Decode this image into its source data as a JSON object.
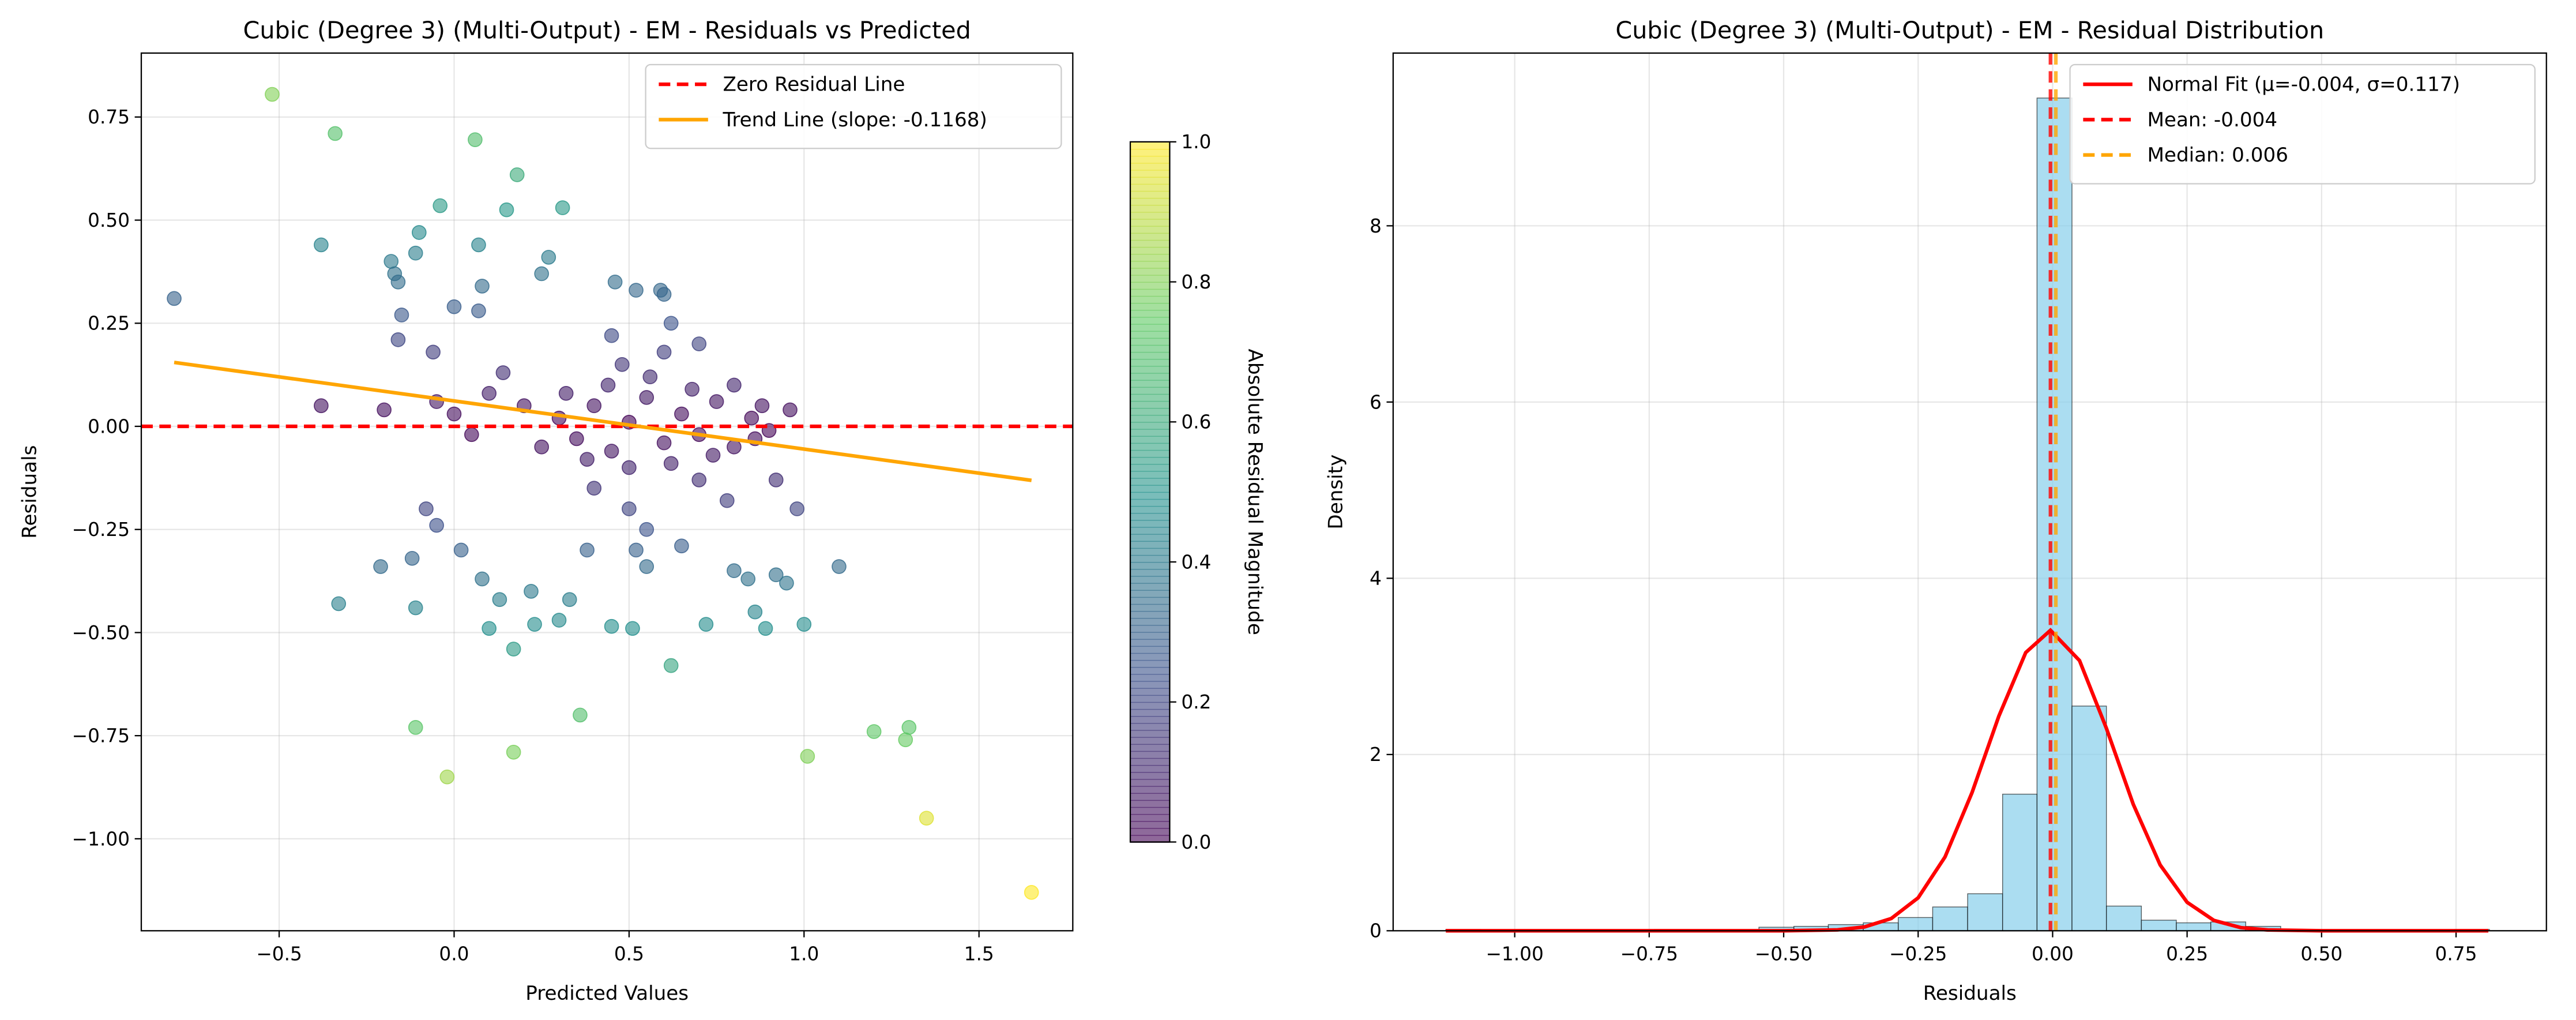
{
  "chart_data": [
    {
      "type": "scatter",
      "title": "Cubic (Degree 3) (Multi-Output) - EM - Residuals vs Predicted",
      "xlabel": "Predicted Values",
      "ylabel": "Residuals",
      "xlim": [
        -0.894,
        1.768
      ],
      "ylim": [
        -1.223,
        0.905
      ],
      "xticks": [
        {
          "value": -0.5,
          "label": "−0.5"
        },
        {
          "value": 0,
          "label": "0.0"
        },
        0.5,
        {
          "value": 1,
          "label": "1.0"
        },
        1.5
      ],
      "yticks": [
        {
          "value": -1,
          "label": "−1.00"
        },
        {
          "value": -0.75,
          "label": "−0.75"
        },
        {
          "value": -0.5,
          "label": "−0.50"
        },
        {
          "value": -0.25,
          "label": "−0.25"
        },
        {
          "value": 0,
          "label": "0.00"
        },
        0.25,
        {
          "value": 0.5,
          "label": "0.50"
        },
        0.75
      ],
      "grid": true,
      "legend": "upper right",
      "colormap": "viridis",
      "alpha": 0.6,
      "clim": [
        0,
        1
      ],
      "colorbar_label": "Absolute Residual Magnitude",
      "colorbar_ticks": [
        {
          "value": 0,
          "label": "0.0"
        },
        0.2,
        0.4,
        0.6,
        0.8,
        {
          "value": 1,
          "label": "1.0"
        }
      ],
      "points": {
        "x": [
          -0.8,
          -0.52,
          -0.34,
          -0.38,
          -0.33,
          -0.38,
          -0.2,
          -0.21,
          -0.18,
          -0.17,
          -0.16,
          -0.15,
          -0.16,
          -0.1,
          -0.11,
          -0.04,
          -0.06,
          -0.11,
          -0.11,
          -0.12,
          -0.08,
          -0.05,
          -0.02,
          0.0,
          0.02,
          0.06,
          0.07,
          0.08,
          0.08,
          0.07,
          0.1,
          0.13,
          0.14,
          0.15,
          0.18,
          0.17,
          0.17,
          0.22,
          0.23,
          0.25,
          0.27,
          0.3,
          0.31,
          0.33,
          0.36,
          0.38,
          0.45,
          0.46,
          0.51,
          0.52,
          0.55,
          0.59,
          0.6,
          0.62,
          0.65,
          0.72,
          0.8,
          0.84,
          0.86,
          0.89,
          0.92,
          0.95,
          0.98,
          1.0,
          1.01,
          1.1,
          1.2,
          1.29,
          1.3,
          1.35,
          1.65,
          0.96,
          0.92,
          0.88,
          0.3,
          0.35,
          0.4,
          0.45,
          0.5,
          0.55,
          0.6,
          0.65,
          0.7,
          0.75,
          0.8,
          0.85,
          0.9,
          0.32,
          0.38,
          0.44,
          0.5,
          0.56,
          0.62,
          0.68,
          0.74,
          0.8,
          0.86,
          0.4,
          0.5,
          0.6,
          0.7,
          0.2,
          0.25,
          0.1,
          0.05,
          0.0,
          -0.05,
          0.45,
          0.55,
          0.48,
          0.52,
          0.62,
          0.7,
          0.78
        ],
        "y": [
          0.31,
          0.805,
          0.71,
          0.44,
          -0.43,
          0.05,
          0.04,
          -0.34,
          0.4,
          0.37,
          0.35,
          0.27,
          0.21,
          0.47,
          0.42,
          0.535,
          0.18,
          -0.73,
          -0.44,
          -0.32,
          -0.2,
          -0.24,
          -0.85,
          0.29,
          -0.3,
          0.695,
          0.44,
          -0.37,
          0.34,
          0.28,
          -0.49,
          -0.42,
          0.13,
          0.525,
          0.61,
          -0.54,
          -0.79,
          -0.4,
          -0.48,
          0.37,
          0.41,
          -0.47,
          0.53,
          -0.42,
          -0.7,
          -0.3,
          -0.485,
          0.35,
          -0.49,
          0.33,
          -0.34,
          0.33,
          0.32,
          -0.58,
          -0.29,
          -0.48,
          -0.35,
          -0.37,
          -0.45,
          -0.49,
          -0.36,
          -0.38,
          -0.2,
          -0.48,
          -0.8,
          -0.34,
          -0.74,
          -0.76,
          -0.73,
          -0.95,
          -1.13,
          0.04,
          -0.13,
          0.05,
          0.02,
          -0.03,
          0.05,
          -0.06,
          0.01,
          0.07,
          -0.04,
          0.03,
          -0.02,
          0.06,
          -0.05,
          0.02,
          -0.01,
          0.08,
          -0.08,
          0.1,
          -0.1,
          0.12,
          -0.09,
          0.09,
          -0.07,
          0.1,
          -0.03,
          -0.15,
          -0.2,
          0.18,
          -0.13,
          0.05,
          -0.05,
          0.08,
          -0.02,
          0.03,
          0.06,
          0.22,
          -0.25,
          0.15,
          -0.3,
          0.25,
          0.2,
          -0.18
        ]
      },
      "lines": [
        {
          "name": "Zero Residual Line",
          "color": "#ff0000",
          "style": "dashed",
          "hline": 0
        },
        {
          "name": "Trend Line (slope: -0.1168)",
          "color": "#ffa500",
          "style": "solid",
          "x": [
            -0.8,
            1.65
          ],
          "y": [
            0.155,
            -0.131
          ]
        }
      ]
    },
    {
      "type": "histogram",
      "title": "Cubic (Degree 3) (Multi-Output) - EM - Residual Distribution",
      "xlabel": "Residuals",
      "ylabel": "Density",
      "xlim": [
        -1.226,
        0.918
      ],
      "ylim": [
        0,
        9.96
      ],
      "xticks": [
        {
          "value": -1,
          "label": "−1.00"
        },
        {
          "value": -0.75,
          "label": "−0.75"
        },
        {
          "value": -0.5,
          "label": "−0.50"
        },
        {
          "value": -0.25,
          "label": "−0.25"
        },
        {
          "value": 0,
          "label": "0.00"
        },
        0.25,
        {
          "value": 0.5,
          "label": "0.50"
        },
        0.75
      ],
      "yticks": [
        0,
        2,
        4,
        6,
        8
      ],
      "grid": true,
      "legend": "upper right",
      "color": "#87ceeb",
      "alpha": 0.7,
      "edgecolor": "#000000",
      "bins": [
        -1.128,
        -1.063,
        -0.999,
        -0.934,
        -0.869,
        -0.805,
        -0.74,
        -0.675,
        -0.611,
        -0.546,
        -0.481,
        -0.417,
        -0.352,
        -0.287,
        -0.223,
        -0.158,
        -0.093,
        -0.029,
        0.036,
        0.1,
        0.165,
        0.23,
        0.294,
        0.359,
        0.424,
        0.488,
        0.553,
        0.618,
        0.682,
        0.747,
        0.812
      ],
      "counts": [
        0.015,
        0,
        0,
        0,
        0,
        0,
        0.015,
        0,
        0,
        0.04,
        0.05,
        0.07,
        0.09,
        0.15,
        0.27,
        0.42,
        1.55,
        9.45,
        2.55,
        0.28,
        0.12,
        0.09,
        0.1,
        0.05,
        0.01,
        0,
        0,
        0,
        0,
        0.015
      ],
      "lines": [
        {
          "name": "Normal Fit (μ=-0.004, σ=0.117)",
          "color": "#ff0000",
          "style": "solid",
          "x": [
            -1.128,
            -0.5,
            -0.4,
            -0.35,
            -0.3,
            -0.25,
            -0.2,
            -0.15,
            -0.1,
            -0.05,
            -0.004,
            0.05,
            0.1,
            0.15,
            0.2,
            0.25,
            0.3,
            0.35,
            0.4,
            0.5,
            0.81
          ],
          "y": [
            0,
            0,
            0.01,
            0.043,
            0.139,
            0.374,
            0.838,
            1.565,
            2.435,
            3.157,
            3.41,
            3.066,
            2.297,
            1.434,
            0.746,
            0.323,
            0.117,
            0.035,
            0.009,
            0,
            0
          ]
        },
        {
          "name": "Mean: -0.004",
          "color": "#ff0000",
          "style": "dashed",
          "vline": -0.004
        },
        {
          "name": "Median: 0.006",
          "color": "#ffa500",
          "style": "dashed",
          "vline": 0.006
        }
      ]
    }
  ]
}
